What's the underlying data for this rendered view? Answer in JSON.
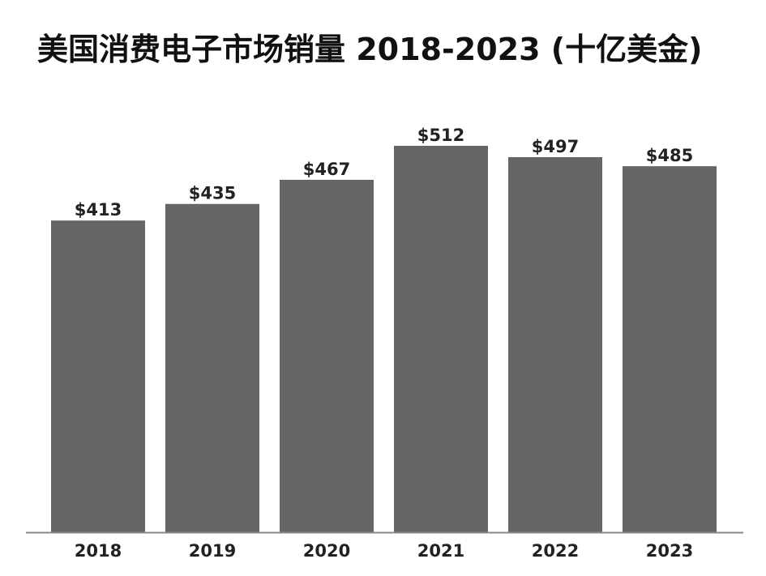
{
  "chart_data": {
    "type": "bar",
    "title": "美国消费电子市场销量 2018-2023 (十亿美金)",
    "categories": [
      "2018",
      "2019",
      "2020",
      "2021",
      "2022",
      "2023"
    ],
    "values": [
      413,
      435,
      467,
      512,
      497,
      485
    ],
    "data_labels": [
      "$413",
      "$435",
      "$467",
      "$512",
      "$497",
      "$485"
    ],
    "xlabel": "",
    "ylabel": "",
    "ylim": [
      0,
      512
    ],
    "grid": false,
    "legend": "none",
    "colors": {
      "bar": "#666666",
      "axis": "#888888",
      "text": "#222222"
    }
  }
}
